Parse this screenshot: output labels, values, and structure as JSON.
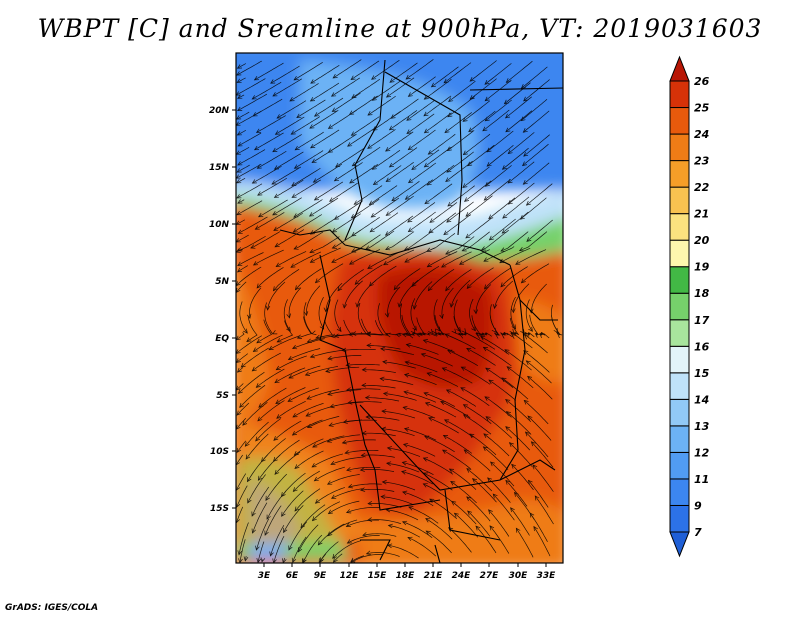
{
  "title": "WBPT [C] and Sreamline at 900hPa, VT: 2019031603",
  "credit": "GrADS: IGES/COLA",
  "map": {
    "lat_labels": [
      "20N",
      "15N",
      "10N",
      "5N",
      "EQ",
      "5S",
      "10S",
      "15S"
    ],
    "lon_labels": [
      "3E",
      "6E",
      "9E",
      "12E",
      "15E",
      "18E",
      "21E",
      "24E",
      "27E",
      "30E",
      "33E"
    ],
    "lat_range": [
      -18.5,
      24.7
    ],
    "lon_range": [
      0,
      35
    ]
  },
  "colorbar": {
    "labels": [
      "7",
      "9",
      "11",
      "12",
      "13",
      "14",
      "15",
      "16",
      "17",
      "18",
      "19",
      "20",
      "21",
      "22",
      "23",
      "24",
      "25",
      "26"
    ],
    "colors": [
      "#1f5fd6",
      "#2c72e8",
      "#3c86f0",
      "#519cf3",
      "#6cb2f5",
      "#91c9f7",
      "#bfe2f9",
      "#e3f4f9",
      "#a8e59d",
      "#76d16b",
      "#42b845",
      "#fdf7ae",
      "#fbe27f",
      "#f8c250",
      "#f59e28",
      "#ef7c16",
      "#e85a0c",
      "#d63208",
      "#b81605"
    ]
  },
  "field_colors": {
    "deep_blue": "#3c86f0",
    "mid_blue": "#6cb2f5",
    "light_blue": "#bfe2f9",
    "green": "#76d16b",
    "dark_green": "#42b845",
    "orange": "#ef7c16",
    "red_orange": "#e85a0c",
    "red": "#d63208",
    "dark_red": "#b81605"
  }
}
